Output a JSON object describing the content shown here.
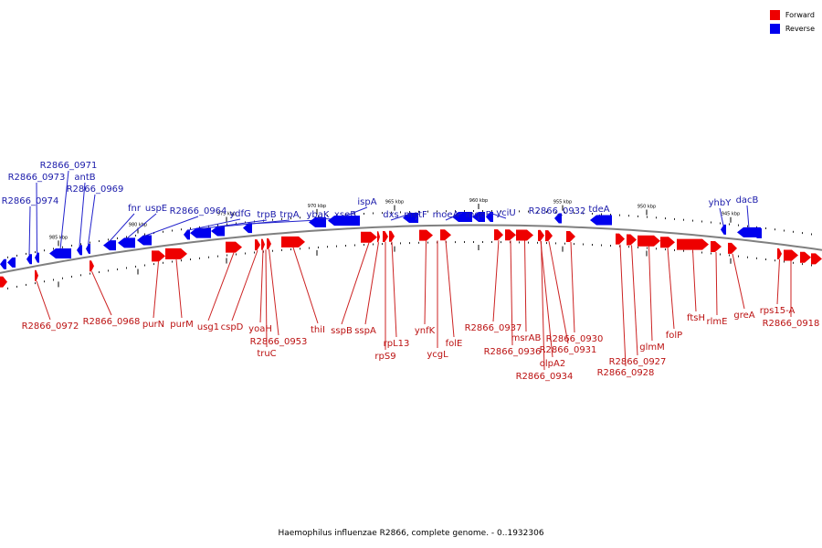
{
  "legend": {
    "forward_label": "Forward",
    "reverse_label": "Reverse",
    "forward_color": "#ff0000",
    "reverse_color": "#0000ff"
  },
  "caption": "Haemophilus influenzae R2866, complete genome. - 0..1932306",
  "ticks": [
    "985 kbp",
    "980 kbp",
    "975 kbp",
    "970 kbp",
    "965 kbp",
    "960 kbp",
    "955 kbp",
    "950 kbp",
    "945 kbp"
  ],
  "reverse_genes": [
    "R2866_0974",
    "R2866_0973",
    "R2866_0971",
    "antB",
    "R2866_0969",
    "fnr",
    "uspE",
    "R2866_0964",
    "ydfG",
    "trpB",
    "trpA",
    "ybaK",
    "xseB",
    "ispA",
    "dxs",
    "metF",
    "moeA",
    "moeB",
    "yciU",
    "R2866_0932",
    "tdeA",
    "yhbY",
    "dacB"
  ],
  "forward_genes": [
    "R2866_0972",
    "R2866_0968",
    "purN",
    "purM",
    "usg1",
    "cspD",
    "yoaH",
    "R2866_0953",
    "truC",
    "thiI",
    "sspB",
    "sspA",
    "rpL13",
    "rpS9",
    "ynfK",
    "ycgL",
    "folE",
    "R2866_0937",
    "R2866_0936",
    "msrAB",
    "R2866_0934",
    "olpA2",
    "R2866_0931",
    "R2866_0930",
    "R2866_0928",
    "R2866_0927",
    "glmM",
    "folP",
    "ftsH",
    "rlmE",
    "greA",
    "rps15-A",
    "R2866_0918"
  ]
}
